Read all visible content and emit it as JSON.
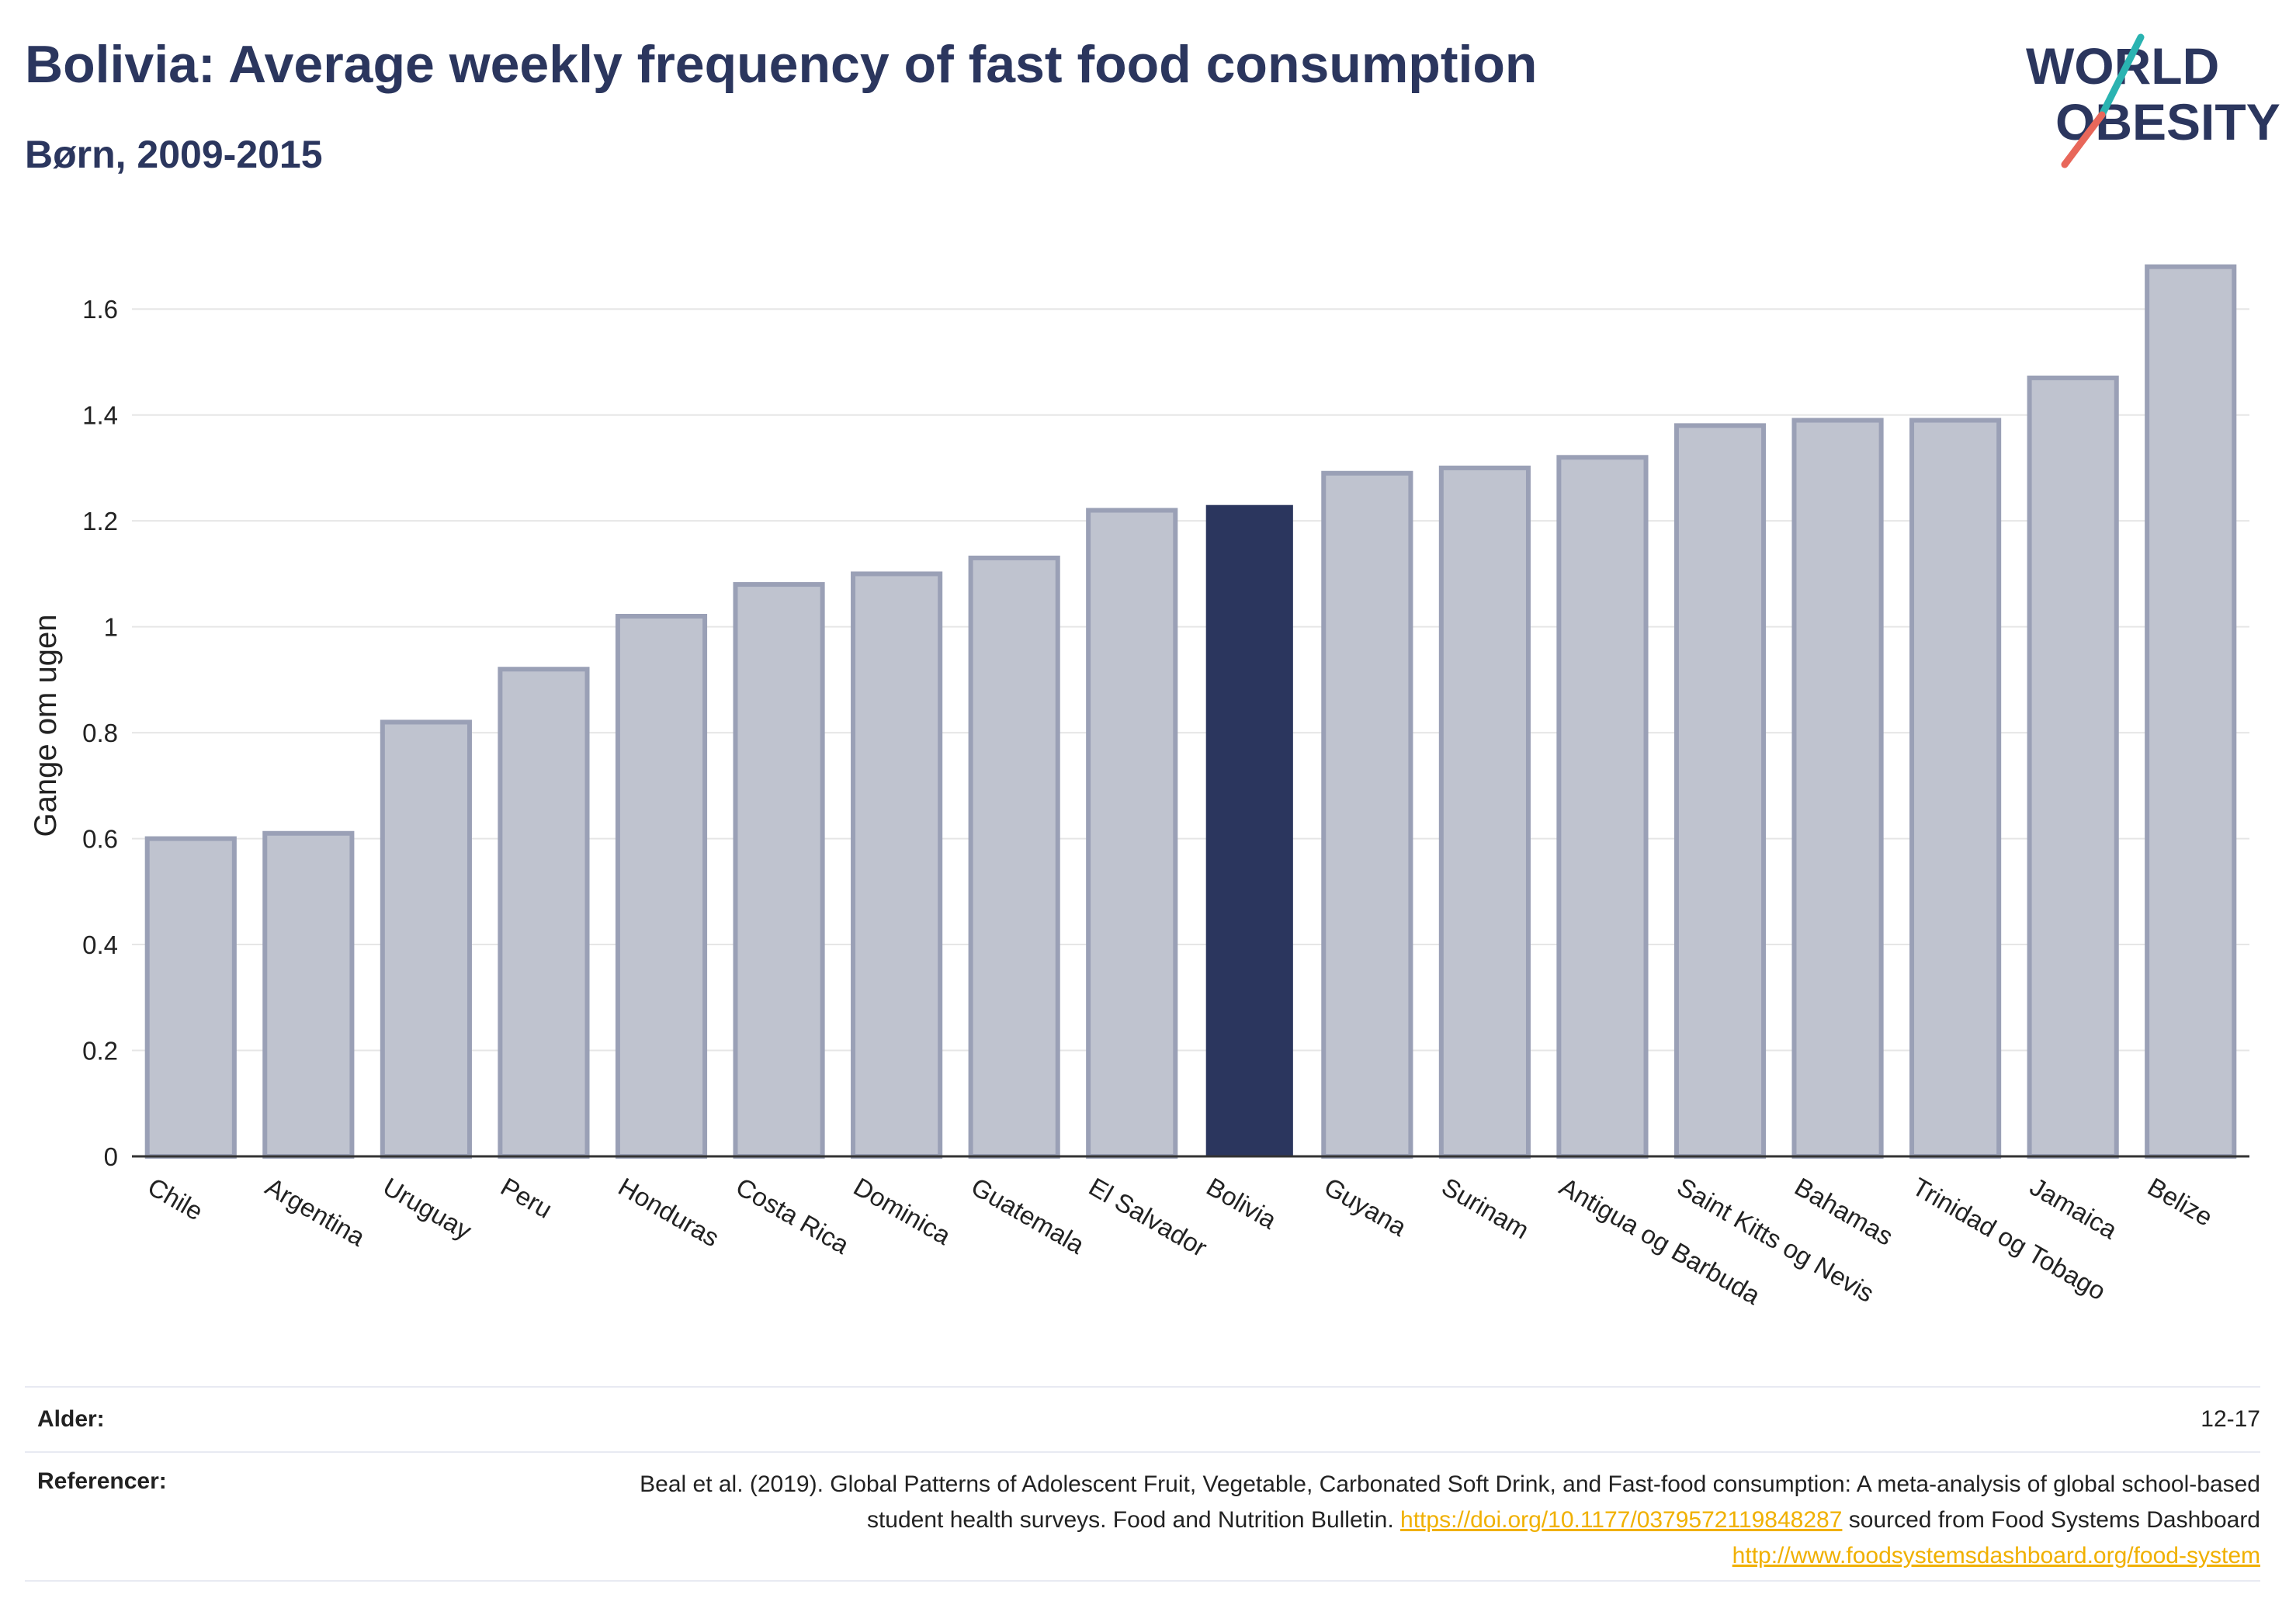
{
  "header": {
    "title": "Bolivia: Average weekly frequency of fast food consumption",
    "subtitle": "Børn, 2009-2015"
  },
  "logo": {
    "line1": "WORLD",
    "line2": "OBESITY"
  },
  "colors": {
    "title": "#2b365e",
    "bar": "#bfc3cf",
    "bar_border": "#9aa0b6",
    "highlight": "#2b365e",
    "grid": "#e6e6e6",
    "link": "#f0b000",
    "logo_teal": "#2ab3b1",
    "logo_red": "#e8675a"
  },
  "chart_data": {
    "type": "bar",
    "categories": [
      "Chile",
      "Argentina",
      "Uruguay",
      "Peru",
      "Honduras",
      "Costa Rica",
      "Dominica",
      "Guatemala",
      "El Salvador",
      "Bolivia",
      "Guyana",
      "Surinam",
      "Antigua og Barbuda",
      "Saint Kitts og Nevis",
      "Bahamas",
      "Trinidad og Tobago",
      "Jamaica",
      "Belize"
    ],
    "values": [
      0.6,
      0.61,
      0.82,
      0.92,
      1.02,
      1.08,
      1.1,
      1.13,
      1.22,
      1.23,
      1.29,
      1.3,
      1.32,
      1.38,
      1.39,
      1.39,
      1.47,
      1.68
    ],
    "highlight": "Bolivia",
    "ylabel": "Gange om ugen",
    "xlabel": "",
    "ylim": [
      0,
      1.7
    ],
    "yticks": [
      0,
      0.2,
      0.4,
      0.6,
      0.8,
      1,
      1.2,
      1.4,
      1.6
    ],
    "ytick_labels": [
      "0",
      "0.2",
      "0.4",
      "0.6",
      "0.8",
      "1",
      "1.2",
      "1.4",
      "1.6"
    ],
    "grid": true
  },
  "footer": {
    "age_label": "Alder:",
    "age_value": "12-17",
    "ref_label": "Referencer:",
    "ref_text_1": "Beal et al. (2019). Global Patterns of Adolescent Fruit, Vegetable, Carbonated Soft Drink, and Fast-food consumption: A meta-analysis of global school-based student health surveys. Food and Nutrition Bulletin.",
    "ref_link_1": "https://doi.org/10.1177/0379572119848287",
    "ref_text_2": "sourced from Food Systems Dashboard",
    "ref_link_2": "http://www.foodsystemsdashboard.org/food-system"
  }
}
